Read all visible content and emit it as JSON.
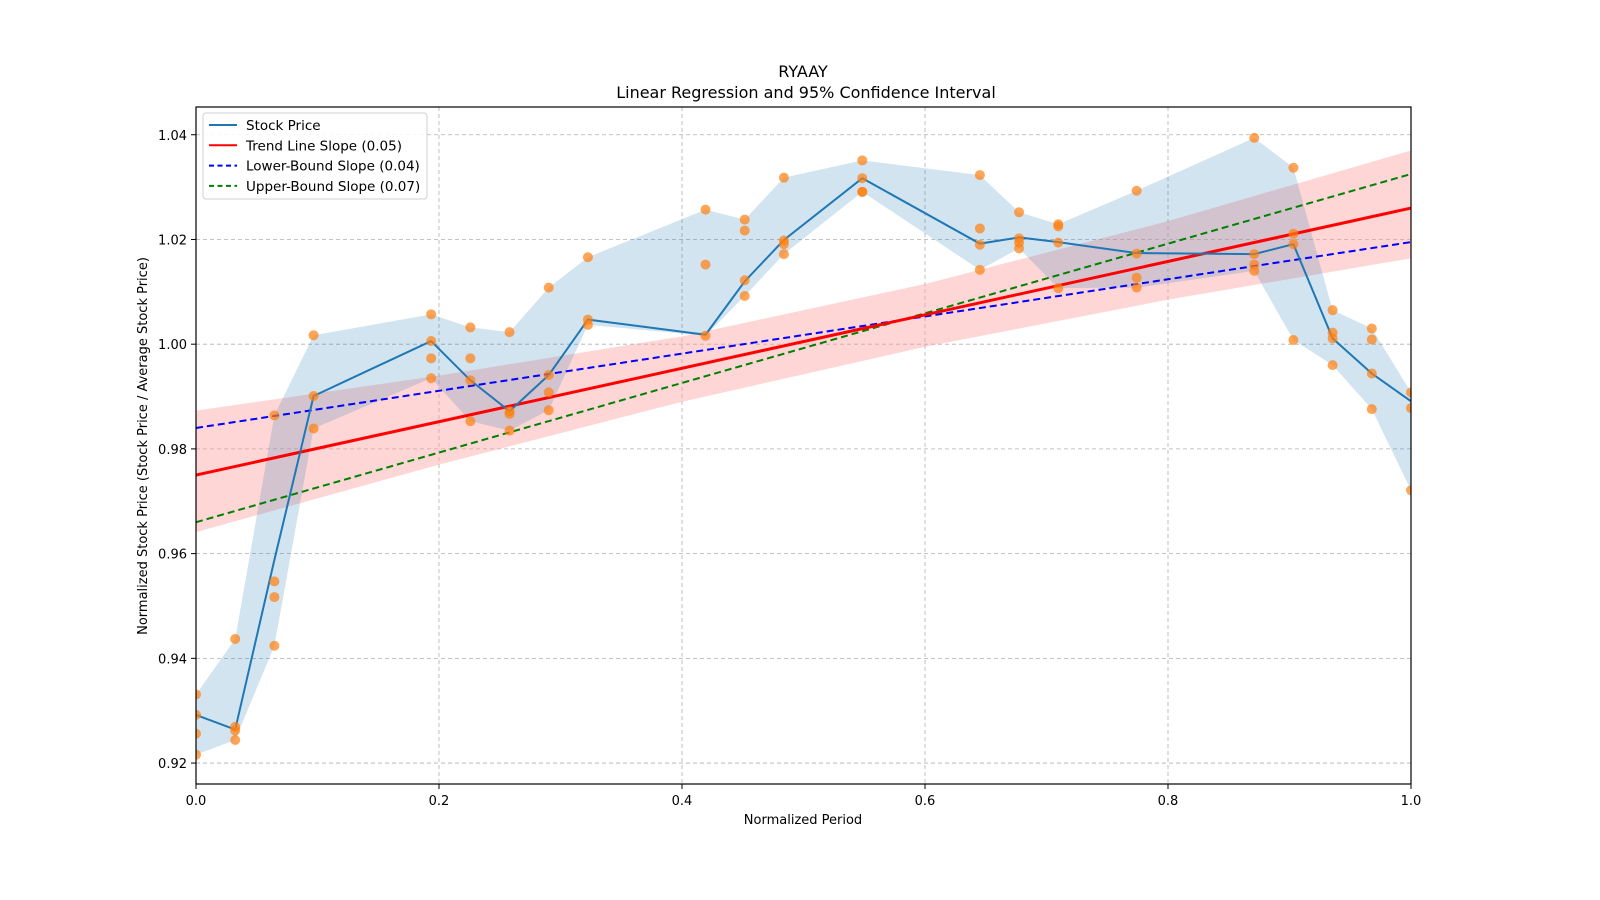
{
  "chart_data": {
    "type": "line",
    "title": "RYAAY",
    "subtitle": "Linear Regression and 95% Confidence Interval",
    "xlabel": "Normalized Period",
    "ylabel": "Normalized Stock Price (Stock Price / Average Stock Price)",
    "xlim": [
      0.0,
      1.0
    ],
    "ylim": [
      0.916,
      1.0453
    ],
    "grid": true,
    "legend_position": "top-left",
    "x_ticks": [
      "0.0",
      "0.2",
      "0.4",
      "0.6",
      "0.8",
      "1.0"
    ],
    "x_tick_values": [
      0.0,
      0.2,
      0.4,
      0.6,
      0.8,
      1.0
    ],
    "y_ticks": [
      "0.92",
      "0.94",
      "0.96",
      "0.98",
      "1.00",
      "1.02",
      "1.04"
    ],
    "y_tick_values": [
      0.92,
      0.94,
      0.96,
      0.98,
      1.0,
      1.02,
      1.04
    ],
    "period_denominator": 31,
    "periods": [
      {
        "k": 0,
        "points": [
          0.9331,
          0.9292,
          0.9256,
          0.9216
        ],
        "mean": 0.9292
      },
      {
        "k": 1,
        "points": [
          0.9437,
          0.9269,
          0.9262,
          0.9244
        ],
        "mean": 0.9264
      },
      {
        "k": 2,
        "points": [
          0.9864,
          0.9547,
          0.9517,
          0.9424
        ],
        "mean": 0.9588
      },
      {
        "k": 3,
        "points": [
          1.0017,
          0.9901,
          0.9839
        ],
        "mean": 0.9901
      },
      {
        "k": 6,
        "points": [
          1.0057,
          1.0006,
          0.9973,
          0.9935
        ],
        "mean": 1.0006
      },
      {
        "k": 7,
        "points": [
          1.0032,
          0.9973,
          0.9931,
          0.9853
        ],
        "mean": 0.9931
      },
      {
        "k": 8,
        "points": [
          1.0023,
          0.9872,
          0.9867,
          0.9835
        ],
        "mean": 0.9872
      },
      {
        "k": 9,
        "points": [
          1.0108,
          0.9941,
          0.9908,
          0.9874
        ],
        "mean": 0.9941
      },
      {
        "k": 10,
        "points": [
          1.0166,
          1.0047,
          1.0037
        ],
        "mean": 1.0047
      },
      {
        "k": 13,
        "points": [
          1.0257,
          1.0152,
          1.0016
        ],
        "mean": 1.0018
      },
      {
        "k": 14,
        "points": [
          1.0238,
          1.0217,
          1.0122,
          1.0092
        ],
        "mean": 1.012
      },
      {
        "k": 15,
        "points": [
          1.0318,
          1.0198,
          1.0191,
          1.0172
        ],
        "mean": 1.0199
      },
      {
        "k": 17,
        "points": [
          1.0351,
          1.0317,
          1.0291,
          1.0291
        ],
        "mean": 1.0317
      },
      {
        "k": 20,
        "points": [
          1.0323,
          1.0221,
          1.019,
          1.0142
        ],
        "mean": 1.0192
      },
      {
        "k": 21,
        "points": [
          1.0252,
          1.0202,
          1.0194,
          1.0183
        ],
        "mean": 1.0204
      },
      {
        "k": 22,
        "points": [
          1.0229,
          1.0225,
          1.0194,
          1.0107
        ],
        "mean": 1.0195
      },
      {
        "k": 24,
        "points": [
          1.0293,
          1.0173,
          1.0127,
          1.0108
        ],
        "mean": 1.0174
      },
      {
        "k": 27,
        "points": [
          1.0394,
          1.0172,
          1.0152,
          1.014
        ],
        "mean": 1.0172
      },
      {
        "k": 28,
        "points": [
          1.0337,
          1.0211,
          1.0191,
          1.0008
        ],
        "mean": 1.0191
      },
      {
        "k": 29,
        "points": [
          1.0065,
          1.0022,
          1.0011,
          0.996
        ],
        "mean": 1.0011
      },
      {
        "k": 30,
        "points": [
          1.003,
          1.0009,
          0.9944,
          0.9876
        ],
        "mean": 0.9944
      },
      {
        "k": 31,
        "points": [
          0.9908,
          0.9878,
          0.9721
        ],
        "mean": 0.9891
      }
    ],
    "regression": {
      "trend": {
        "intercept": 0.975,
        "slope": 0.051
      },
      "lower": {
        "intercept": 0.984,
        "slope": 0.0355
      },
      "upper": {
        "intercept": 0.966,
        "slope": 0.0665
      },
      "ci_band": {
        "x": [
          0.0,
          0.2,
          0.4,
          0.6,
          0.8,
          1.0
        ],
        "lower": [
          0.9641,
          0.977,
          0.989,
          0.9995,
          1.0085,
          1.0164
        ],
        "upper": [
          0.9873,
          0.994,
          1.0015,
          1.0115,
          1.0235,
          1.037
        ]
      }
    },
    "legend": [
      {
        "label": "Stock Price",
        "style": "solid",
        "color": "#1f77b4"
      },
      {
        "label": "Trend Line Slope (0.05)",
        "style": "solid",
        "color": "#ff0000"
      },
      {
        "label": "Lower-Bound Slope (0.04)",
        "style": "dashed",
        "color": "#0000ff"
      },
      {
        "label": "Upper-Bound Slope (0.07)",
        "style": "dashed",
        "color": "#008000"
      }
    ],
    "colors": {
      "stock_line": "#1f77b4",
      "range_band": "#1f77b4",
      "scatter": "#ff7f0e",
      "trend": "#ff0000",
      "ci_band": "#ff9999",
      "lower": "#0000ff",
      "upper": "#008000",
      "grid": "#b0b0b0"
    }
  }
}
